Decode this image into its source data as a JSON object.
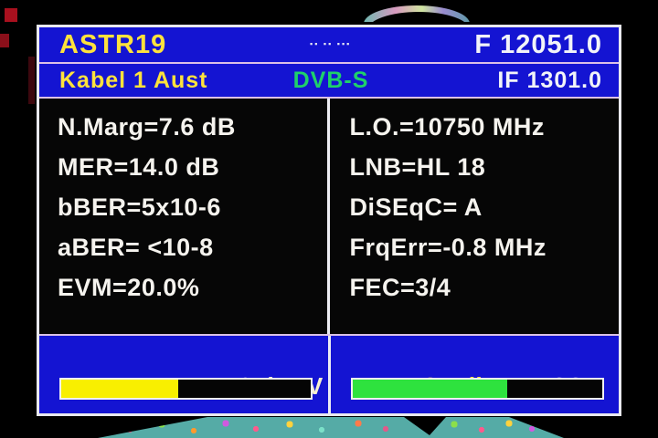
{
  "ui": {
    "equals": "="
  },
  "header": {
    "satellite_name": "ASTR19",
    "lock_indicators": "▪▪ ▪▪ ▪▪▪",
    "frequency": "F 12051.0",
    "channel_name": "Kabel 1 Aust",
    "standard": "DVB-S",
    "if_frequency": "IF 1301.0"
  },
  "measurements_left": [
    {
      "label": "N.Marg",
      "value": "7.6 dB"
    },
    {
      "label": "MER",
      "value": "14.0 dB"
    },
    {
      "label": "bBER",
      "value": "5x10-6"
    },
    {
      "label": "aBER",
      "value": " <10-8"
    },
    {
      "label": "EVM",
      "value": "20.0%"
    }
  ],
  "measurements_right": [
    {
      "label": "L.O.",
      "value": "10750 MHz"
    },
    {
      "label": "LNB",
      "value": "HL 18"
    },
    {
      "label": "DiSEqC",
      "value": " A"
    },
    {
      "label": "FrqErr",
      "value": "-0.8 MHz"
    },
    {
      "label": "FEC",
      "value": "3/4"
    }
  ],
  "power": {
    "label": "Power",
    "value": " 73 dBuV",
    "percent": 47,
    "bar_color": "#f8ef00"
  },
  "quality": {
    "label": "Quality",
    "value": "PASS",
    "percent": 62,
    "bar_color": "#2ee23e"
  },
  "colors": {
    "panel_blue": "#1414d2",
    "accent_yellow": "#ffe23c",
    "standard_green": "#1fd06a",
    "teal_band": "#55aba6"
  }
}
